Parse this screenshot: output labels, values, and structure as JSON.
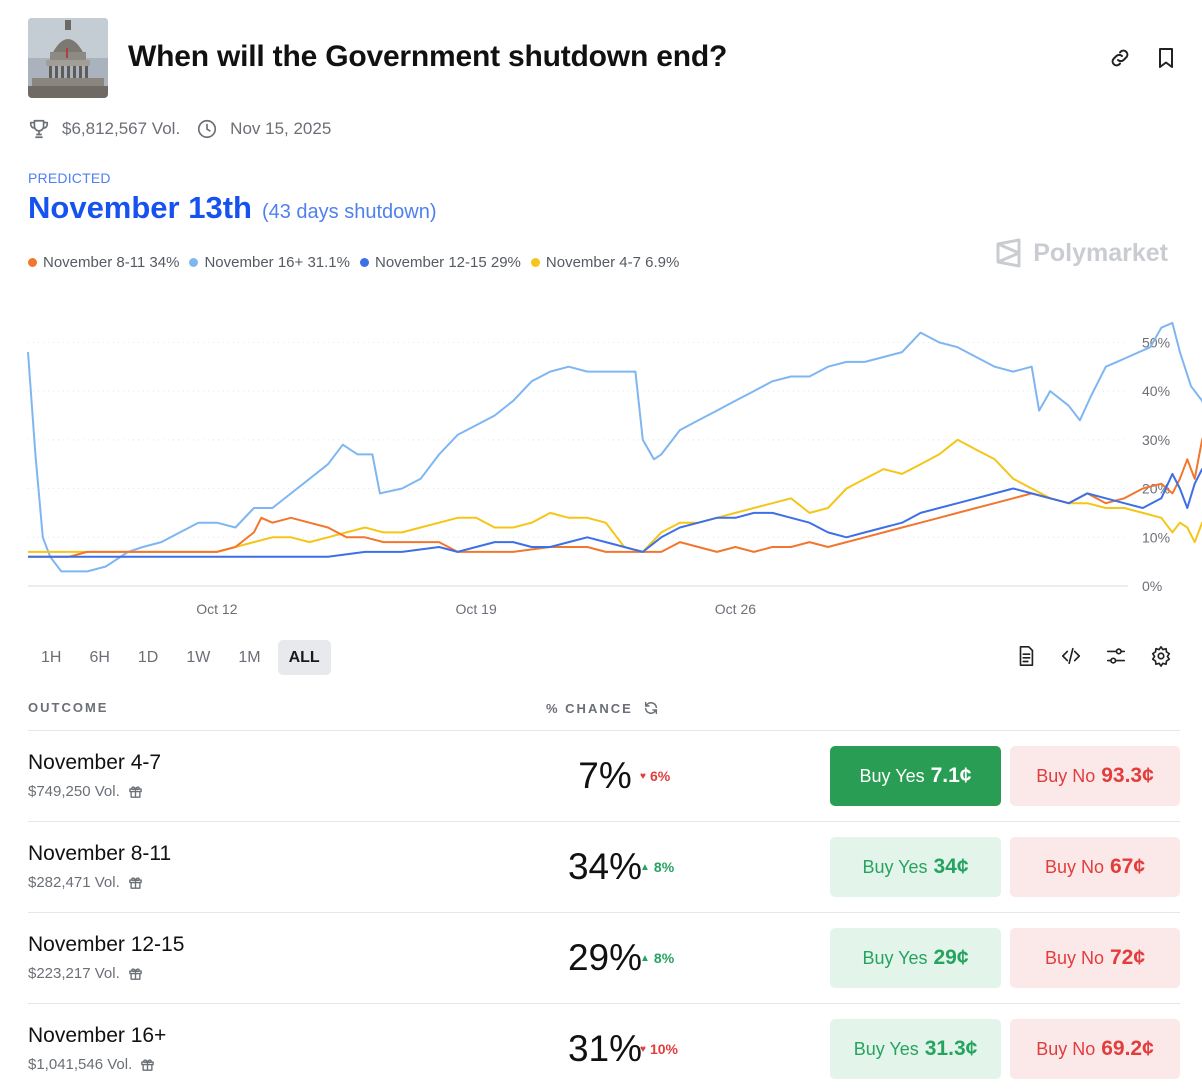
{
  "header": {
    "title": "When will the Government shutdown end?"
  },
  "meta": {
    "volume": "$6,812,567 Vol.",
    "date": "Nov 15, 2025"
  },
  "prediction": {
    "label": "PREDICTED",
    "value": "November 13th",
    "detail": "(43 days shutdown)"
  },
  "legend": [
    {
      "label": "November 8-11 34%",
      "color": "#f2762e"
    },
    {
      "label": "November 16+ 31.1%",
      "color": "#7fb6f2"
    },
    {
      "label": "November 12-15 29%",
      "color": "#3d6fe6"
    },
    {
      "label": "November 4-7 6.9%",
      "color": "#f5c518"
    }
  ],
  "brand": "Polymarket",
  "chart_data": {
    "type": "line",
    "x_tick_labels": [
      "Oct 12",
      "Oct 19",
      "Oct 26"
    ],
    "x_tick_days": [
      12,
      19,
      26
    ],
    "x_range_days": [
      6.9,
      36.6
    ],
    "y_tick_labels": [
      "50%",
      "40%",
      "30%",
      "20%",
      "10%",
      "0%"
    ],
    "ylim": [
      0,
      55
    ],
    "grid": true,
    "series": [
      {
        "name": "November 16+",
        "color": "#7fb6f2",
        "points": [
          [
            6.9,
            48
          ],
          [
            7.1,
            27
          ],
          [
            7.3,
            10
          ],
          [
            7.5,
            6
          ],
          [
            7.8,
            3
          ],
          [
            8.5,
            3
          ],
          [
            9,
            4
          ],
          [
            9.6,
            7
          ],
          [
            10,
            8
          ],
          [
            10.5,
            9
          ],
          [
            11,
            11
          ],
          [
            11.5,
            13
          ],
          [
            12,
            13
          ],
          [
            12.5,
            12
          ],
          [
            13,
            16
          ],
          [
            13.5,
            16
          ],
          [
            14,
            19
          ],
          [
            14.5,
            22
          ],
          [
            15,
            25
          ],
          [
            15.4,
            29
          ],
          [
            15.8,
            27
          ],
          [
            16.2,
            27
          ],
          [
            16.4,
            19
          ],
          [
            17,
            20
          ],
          [
            17.5,
            22
          ],
          [
            18,
            27
          ],
          [
            18.5,
            31
          ],
          [
            19,
            33
          ],
          [
            19.5,
            35
          ],
          [
            20,
            38
          ],
          [
            20.5,
            42
          ],
          [
            21,
            44
          ],
          [
            21.5,
            45
          ],
          [
            22,
            44
          ],
          [
            22.5,
            44
          ],
          [
            23,
            44
          ],
          [
            23.3,
            44
          ],
          [
            23.5,
            30
          ],
          [
            23.8,
            26
          ],
          [
            24,
            27
          ],
          [
            24.5,
            32
          ],
          [
            25,
            34
          ],
          [
            25.5,
            36
          ],
          [
            26,
            38
          ],
          [
            26.5,
            40
          ],
          [
            27,
            42
          ],
          [
            27.5,
            43
          ],
          [
            28,
            43
          ],
          [
            28.5,
            45
          ],
          [
            29,
            46
          ],
          [
            29.5,
            46
          ],
          [
            30,
            47
          ],
          [
            30.5,
            48
          ],
          [
            31,
            52
          ],
          [
            31.5,
            50
          ],
          [
            32,
            49
          ],
          [
            32.5,
            47
          ],
          [
            33,
            45
          ],
          [
            33.5,
            44
          ],
          [
            34,
            45
          ],
          [
            34.2,
            36
          ],
          [
            34.5,
            40
          ],
          [
            35,
            37
          ],
          [
            35.3,
            34
          ],
          [
            35.6,
            39
          ],
          [
            36,
            45
          ],
          [
            36.3,
            46
          ],
          [
            36.6,
            47
          ],
          [
            36.9,
            48
          ],
          [
            37.2,
            49
          ],
          [
            37.5,
            53
          ],
          [
            37.8,
            54
          ],
          [
            38,
            48
          ],
          [
            38.3,
            41
          ],
          [
            38.6,
            38
          ],
          [
            38.9,
            32
          ],
          [
            39.2,
            29
          ],
          [
            39.4,
            31
          ]
        ]
      },
      {
        "name": "November 8-11",
        "color": "#f2762e",
        "points": [
          [
            6.9,
            6
          ],
          [
            8,
            6
          ],
          [
            8.5,
            7
          ],
          [
            9,
            7
          ],
          [
            10,
            7
          ],
          [
            11,
            7
          ],
          [
            12,
            7
          ],
          [
            12.5,
            8
          ],
          [
            13,
            11
          ],
          [
            13.2,
            14
          ],
          [
            13.5,
            13
          ],
          [
            14,
            14
          ],
          [
            14.5,
            13
          ],
          [
            15,
            12
          ],
          [
            15.5,
            10
          ],
          [
            16,
            10
          ],
          [
            16.5,
            9
          ],
          [
            17,
            9
          ],
          [
            18,
            9
          ],
          [
            18.5,
            7
          ],
          [
            19,
            7
          ],
          [
            20,
            7
          ],
          [
            21,
            8
          ],
          [
            22,
            8
          ],
          [
            22.5,
            7
          ],
          [
            23,
            7
          ],
          [
            24,
            7
          ],
          [
            24.5,
            9
          ],
          [
            25,
            8
          ],
          [
            25.5,
            7
          ],
          [
            26,
            8
          ],
          [
            26.5,
            7
          ],
          [
            27,
            8
          ],
          [
            27.5,
            8
          ],
          [
            28,
            9
          ],
          [
            28.5,
            8
          ],
          [
            29,
            9
          ],
          [
            29.5,
            10
          ],
          [
            30,
            11
          ],
          [
            30.5,
            12
          ],
          [
            31,
            13
          ],
          [
            31.5,
            14
          ],
          [
            32,
            15
          ],
          [
            32.5,
            16
          ],
          [
            33,
            17
          ],
          [
            33.5,
            18
          ],
          [
            34,
            19
          ],
          [
            34.5,
            18
          ],
          [
            35,
            17
          ],
          [
            35.5,
            19
          ],
          [
            36,
            17
          ],
          [
            36.5,
            18
          ],
          [
            37,
            20
          ],
          [
            37.5,
            21
          ],
          [
            37.8,
            19
          ],
          [
            38,
            22
          ],
          [
            38.2,
            26
          ],
          [
            38.4,
            22
          ],
          [
            38.6,
            30
          ],
          [
            38.8,
            34
          ],
          [
            39,
            39
          ],
          [
            39.2,
            33
          ],
          [
            39.4,
            34
          ]
        ]
      },
      {
        "name": "November 12-15",
        "color": "#3d6fe6",
        "points": [
          [
            6.9,
            6
          ],
          [
            8,
            6
          ],
          [
            9,
            6
          ],
          [
            10,
            6
          ],
          [
            11,
            6
          ],
          [
            12,
            6
          ],
          [
            13,
            6
          ],
          [
            14,
            6
          ],
          [
            15,
            6
          ],
          [
            16,
            7
          ],
          [
            17,
            7
          ],
          [
            18,
            8
          ],
          [
            18.5,
            7
          ],
          [
            19,
            8
          ],
          [
            19.5,
            9
          ],
          [
            20,
            9
          ],
          [
            20.5,
            8
          ],
          [
            21,
            8
          ],
          [
            21.5,
            9
          ],
          [
            22,
            10
          ],
          [
            22.5,
            9
          ],
          [
            23,
            8
          ],
          [
            23.5,
            7
          ],
          [
            24,
            10
          ],
          [
            24.5,
            12
          ],
          [
            25,
            13
          ],
          [
            25.5,
            14
          ],
          [
            26,
            14
          ],
          [
            26.5,
            15
          ],
          [
            27,
            15
          ],
          [
            27.5,
            14
          ],
          [
            28,
            13
          ],
          [
            28.5,
            11
          ],
          [
            29,
            10
          ],
          [
            29.5,
            11
          ],
          [
            30,
            12
          ],
          [
            30.5,
            13
          ],
          [
            31,
            15
          ],
          [
            31.5,
            16
          ],
          [
            32,
            17
          ],
          [
            32.5,
            18
          ],
          [
            33,
            19
          ],
          [
            33.5,
            20
          ],
          [
            34,
            19
          ],
          [
            34.5,
            18
          ],
          [
            35,
            17
          ],
          [
            35.5,
            19
          ],
          [
            36,
            18
          ],
          [
            36.5,
            17
          ],
          [
            37,
            16
          ],
          [
            37.5,
            18
          ],
          [
            37.8,
            23
          ],
          [
            38,
            20
          ],
          [
            38.2,
            16
          ],
          [
            38.4,
            21
          ],
          [
            38.6,
            24
          ],
          [
            38.8,
            19
          ],
          [
            39,
            14
          ],
          [
            39.2,
            22
          ],
          [
            39.4,
            29
          ]
        ]
      },
      {
        "name": "November 4-7",
        "color": "#f5c518",
        "points": [
          [
            6.9,
            7
          ],
          [
            8,
            7
          ],
          [
            9,
            7
          ],
          [
            10,
            7
          ],
          [
            11,
            7
          ],
          [
            12,
            7
          ],
          [
            12.5,
            8
          ],
          [
            13,
            9
          ],
          [
            13.5,
            10
          ],
          [
            14,
            10
          ],
          [
            14.5,
            9
          ],
          [
            15,
            10
          ],
          [
            15.5,
            11
          ],
          [
            16,
            12
          ],
          [
            16.5,
            11
          ],
          [
            17,
            11
          ],
          [
            17.5,
            12
          ],
          [
            18,
            13
          ],
          [
            18.5,
            14
          ],
          [
            19,
            14
          ],
          [
            19.5,
            12
          ],
          [
            20,
            12
          ],
          [
            20.5,
            13
          ],
          [
            21,
            15
          ],
          [
            21.5,
            14
          ],
          [
            22,
            14
          ],
          [
            22.5,
            13
          ],
          [
            23,
            8
          ],
          [
            23.5,
            7
          ],
          [
            24,
            11
          ],
          [
            24.5,
            13
          ],
          [
            25,
            13
          ],
          [
            25.5,
            14
          ],
          [
            26,
            15
          ],
          [
            26.5,
            16
          ],
          [
            27,
            17
          ],
          [
            27.5,
            18
          ],
          [
            28,
            15
          ],
          [
            28.5,
            16
          ],
          [
            29,
            20
          ],
          [
            29.5,
            22
          ],
          [
            30,
            24
          ],
          [
            30.5,
            23
          ],
          [
            31,
            25
          ],
          [
            31.5,
            27
          ],
          [
            32,
            30
          ],
          [
            32.5,
            28
          ],
          [
            33,
            26
          ],
          [
            33.5,
            22
          ],
          [
            34,
            20
          ],
          [
            34.5,
            18
          ],
          [
            35,
            17
          ],
          [
            35.5,
            17
          ],
          [
            36,
            16
          ],
          [
            36.5,
            16
          ],
          [
            37,
            15
          ],
          [
            37.5,
            14
          ],
          [
            37.8,
            11
          ],
          [
            38,
            13
          ],
          [
            38.2,
            12
          ],
          [
            38.4,
            9
          ],
          [
            38.6,
            13
          ],
          [
            38.8,
            12
          ],
          [
            39,
            14
          ],
          [
            39.2,
            8
          ],
          [
            39.4,
            7
          ]
        ]
      }
    ]
  },
  "ranges": [
    "1H",
    "6H",
    "1D",
    "1W",
    "1M",
    "ALL"
  ],
  "table": {
    "col_outcome": "OUTCOME",
    "col_chance": "% CHANCE",
    "rows": [
      {
        "name": "November 4-7",
        "volume": "$749,250 Vol.",
        "chance": "7%",
        "change": "6%",
        "direction": "down",
        "yes_label": "Buy Yes",
        "yes_price": "7.1¢",
        "no_label": "Buy No",
        "no_price": "93.3¢"
      },
      {
        "name": "November 8-11",
        "volume": "$282,471 Vol.",
        "chance": "34%",
        "change": "8%",
        "direction": "up",
        "yes_label": "Buy Yes",
        "yes_price": "34¢",
        "no_label": "Buy No",
        "no_price": "67¢"
      },
      {
        "name": "November 12-15",
        "volume": "$223,217 Vol.",
        "chance": "29%",
        "change": "8%",
        "direction": "up",
        "yes_label": "Buy Yes",
        "yes_price": "29¢",
        "no_label": "Buy No",
        "no_price": "72¢"
      },
      {
        "name": "November 16+",
        "volume": "$1,041,546 Vol.",
        "chance": "31%",
        "change": "10%",
        "direction": "down",
        "yes_label": "Buy Yes",
        "yes_price": "31.3¢",
        "no_label": "Buy No",
        "no_price": "69.2¢"
      }
    ]
  }
}
